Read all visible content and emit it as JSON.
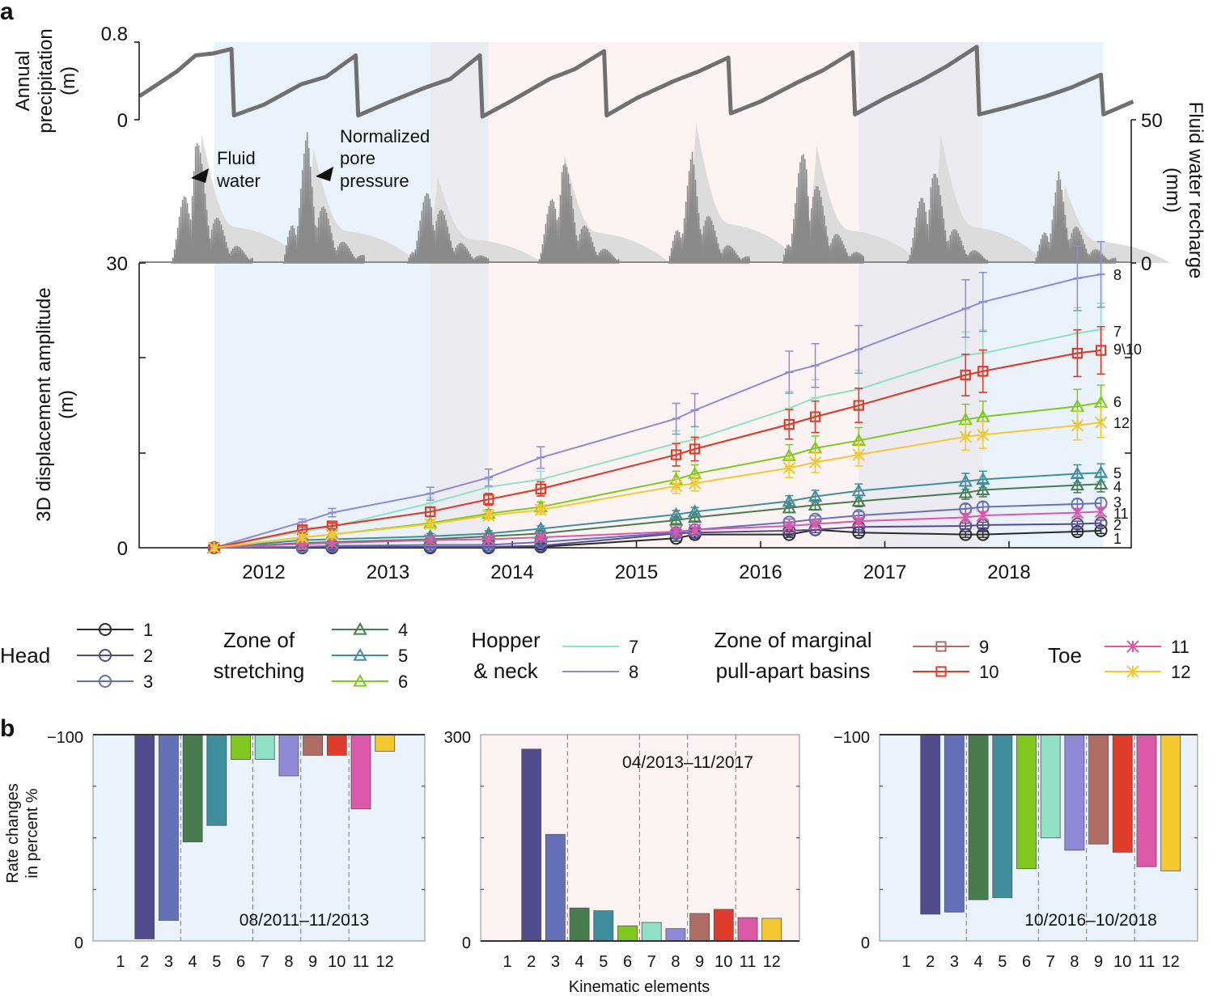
{
  "panel_labels": {
    "a": "a",
    "b": "b"
  },
  "colors": {
    "1": "#2a2a2a",
    "2": "#524c8c",
    "3": "#6470b8",
    "4": "#477c4f",
    "5": "#3f8e9e",
    "6": "#80c820",
    "7": "#8fe0c4",
    "8": "#8f8ad6",
    "9": "#b06d66",
    "10": "#e03c2c",
    "11": "#dc58a8",
    "12": "#f5c832",
    "shade_blue": "#eaf3fb",
    "shade_purple": "#ecebf1",
    "shade_pink": "#fdf3f3",
    "precip": "#707070",
    "recharge": "#8a8a8a",
    "pore": "#dcdcdc"
  },
  "chart_data": [
    {
      "type": "line",
      "name_panel": "a-top",
      "ylabel": [
        "Annual",
        "precipitation",
        "(m)"
      ],
      "ylim": [
        0,
        0.8
      ],
      "yticks": [
        "0",
        "0.8"
      ],
      "y2label": [
        "Fluid water recharge",
        "(mm)"
      ],
      "y2lim": [
        0,
        50
      ],
      "y2ticks": [
        "0",
        "50"
      ],
      "annotations": [
        {
          "text": [
            "Fluid",
            "water"
          ]
        },
        {
          "text": [
            "Normalized",
            "pore",
            "pressure"
          ]
        }
      ],
      "precipitation": [
        [
          2011.0,
          0.22
        ],
        [
          2011.3,
          0.45
        ],
        [
          2011.45,
          0.6
        ],
        [
          2011.6,
          0.62
        ],
        [
          2011.74,
          0.66
        ],
        [
          2011.76,
          0.04
        ],
        [
          2012.0,
          0.14
        ],
        [
          2012.3,
          0.33
        ],
        [
          2012.5,
          0.4
        ],
        [
          2012.74,
          0.6
        ],
        [
          2012.76,
          0.04
        ],
        [
          2013.0,
          0.16
        ],
        [
          2013.3,
          0.3
        ],
        [
          2013.5,
          0.38
        ],
        [
          2013.74,
          0.6
        ],
        [
          2013.76,
          0.03
        ],
        [
          2014.0,
          0.18
        ],
        [
          2014.3,
          0.38
        ],
        [
          2014.5,
          0.47
        ],
        [
          2014.74,
          0.64
        ],
        [
          2014.76,
          0.04
        ],
        [
          2015.0,
          0.2
        ],
        [
          2015.3,
          0.36
        ],
        [
          2015.5,
          0.45
        ],
        [
          2015.74,
          0.58
        ],
        [
          2015.76,
          0.06
        ],
        [
          2016.0,
          0.17
        ],
        [
          2016.3,
          0.35
        ],
        [
          2016.5,
          0.46
        ],
        [
          2016.74,
          0.63
        ],
        [
          2016.76,
          0.05
        ],
        [
          2017.0,
          0.2
        ],
        [
          2017.3,
          0.37
        ],
        [
          2017.5,
          0.5
        ],
        [
          2017.74,
          0.68
        ],
        [
          2017.76,
          0.05
        ],
        [
          2018.0,
          0.12
        ],
        [
          2018.3,
          0.22
        ],
        [
          2018.5,
          0.3
        ],
        [
          2018.74,
          0.42
        ],
        [
          2018.76,
          0.05
        ],
        [
          2019.0,
          0.17
        ]
      ],
      "recharge_peaks": [
        [
          2011.45,
          49
        ],
        [
          2012.35,
          46
        ],
        [
          2013.35,
          32
        ],
        [
          2014.4,
          43
        ],
        [
          2015.45,
          39
        ],
        [
          2016.37,
          48
        ],
        [
          2017.37,
          41
        ],
        [
          2018.4,
          32
        ]
      ],
      "pore_pressure_peaks": [
        [
          2011.5,
          45
        ],
        [
          2012.4,
          40
        ],
        [
          2013.4,
          30
        ],
        [
          2014.42,
          38
        ],
        [
          2015.48,
          49
        ],
        [
          2016.45,
          41
        ],
        [
          2017.45,
          45
        ],
        [
          2018.45,
          27
        ]
      ]
    },
    {
      "type": "line",
      "name_panel": "a-main",
      "ylabel": [
        "3D displacement amplitude",
        "(m)"
      ],
      "ylim": [
        0,
        30
      ],
      "yticks": [
        "0",
        "30"
      ],
      "xticks": [
        "2012",
        "2013",
        "2014",
        "2015",
        "2016",
        "2017",
        "2018"
      ],
      "x": [
        2011.6,
        2012.31,
        2012.55,
        2013.34,
        2013.81,
        2014.23,
        2015.32,
        2015.47,
        2016.23,
        2016.44,
        2016.79,
        2017.65,
        2017.79,
        2018.55,
        2018.74
      ],
      "series": [
        {
          "id": "1",
          "end_label": "1",
          "marker": "circle",
          "values": [
            0,
            0,
            0,
            0,
            0,
            0.1,
            1.0,
            1.4,
            1.4,
            1.9,
            1.6,
            1.4,
            1.4,
            1.7,
            1.8
          ]
        },
        {
          "id": "2",
          "end_label": "2",
          "marker": "circle",
          "values": [
            0,
            0.1,
            0.1,
            0.1,
            0.1,
            0.2,
            1.5,
            1.6,
            1.8,
            1.9,
            2.2,
            2.3,
            2.4,
            2.5,
            2.6
          ]
        },
        {
          "id": "3",
          "end_label": "3",
          "marker": "circle",
          "values": [
            0,
            0.1,
            0.2,
            0.3,
            0.3,
            0.6,
            1.6,
            1.9,
            2.7,
            3.0,
            3.4,
            4.1,
            4.3,
            4.6,
            4.7
          ]
        },
        {
          "id": "4",
          "end_label": "4",
          "marker": "triangle",
          "values": [
            0,
            0.5,
            0.6,
            0.9,
            1.2,
            1.5,
            2.9,
            3.2,
            4.2,
            4.5,
            4.9,
            5.8,
            6.1,
            6.6,
            6.7
          ]
        },
        {
          "id": "5",
          "end_label": "5",
          "marker": "triangle",
          "values": [
            0,
            0.8,
            0.9,
            1.2,
            1.5,
            2.0,
            3.5,
            3.8,
            4.9,
            5.4,
            6.0,
            7.0,
            7.2,
            7.8,
            7.9
          ]
        },
        {
          "id": "6",
          "end_label": "6",
          "marker": "triangle",
          "values": [
            0,
            1.1,
            1.4,
            2.6,
            3.6,
            4.3,
            7.2,
            7.8,
            9.7,
            10.5,
            11.3,
            13.5,
            13.8,
            14.9,
            15.3
          ]
        },
        {
          "id": "7",
          "end_label": "7",
          "marker": "bar",
          "values": [
            0,
            1.7,
            2.2,
            4.7,
            6.4,
            7.2,
            11.0,
            11.4,
            14.7,
            15.8,
            16.7,
            20.3,
            20.5,
            22.6,
            23.0
          ]
        },
        {
          "id": "8",
          "end_label": "8",
          "marker": "bar",
          "values": [
            0,
            2.7,
            3.7,
            5.7,
            7.4,
            9.5,
            13.6,
            14.5,
            18.5,
            19.2,
            20.9,
            25.2,
            25.9,
            28.4,
            28.8
          ]
        },
        {
          "id": "9",
          "end_label": "",
          "marker": "square",
          "values": [
            0,
            1.9,
            2.3,
            3.8,
            5.1,
            6.2,
            9.8,
            10.4,
            13.0,
            13.8,
            15.0,
            18.2,
            18.6,
            20.5,
            20.8
          ]
        },
        {
          "id": "10",
          "end_label": "9\\10",
          "marker": "square",
          "values": [
            0,
            1.9,
            2.3,
            3.8,
            5.1,
            6.2,
            9.8,
            10.4,
            13.0,
            13.8,
            15.0,
            18.2,
            18.6,
            20.5,
            20.8
          ]
        },
        {
          "id": "11",
          "end_label": "11",
          "marker": "star",
          "values": [
            0,
            0.4,
            0.5,
            0.8,
            0.9,
            1.1,
            1.7,
            1.9,
            2.3,
            2.5,
            2.8,
            3.2,
            3.4,
            3.7,
            3.8
          ]
        },
        {
          "id": "12",
          "end_label": "12",
          "marker": "star",
          "values": [
            0,
            1.1,
            1.4,
            2.5,
            3.4,
            4.0,
            6.5,
            6.8,
            8.4,
            9.0,
            9.8,
            11.7,
            11.9,
            12.9,
            13.2
          ]
        }
      ],
      "error_bars": true,
      "shading": [
        {
          "from": 2011.6,
          "to": 2013.34,
          "color": "shade_blue"
        },
        {
          "from": 2013.34,
          "to": 2013.81,
          "color": "shade_purple"
        },
        {
          "from": 2013.81,
          "to": 2016.79,
          "color": "shade_pink"
        },
        {
          "from": 2016.79,
          "to": 2017.79,
          "color": "shade_purple"
        },
        {
          "from": 2017.79,
          "to": 2018.76,
          "color": "shade_blue"
        }
      ]
    },
    {
      "type": "bar",
      "name_panel": "b-1",
      "title": "08/2011–11/2013",
      "ylabel": [
        "Rate changes",
        "in percent %"
      ],
      "ylim": [
        -100,
        0
      ],
      "yticks": [
        "0",
        "−100"
      ],
      "categories": [
        "1",
        "2",
        "3",
        "4",
        "5",
        "6",
        "7",
        "8",
        "9",
        "10",
        "11",
        "12"
      ],
      "values": [
        0,
        -99,
        -90,
        -52,
        -44,
        -12,
        -12,
        -20,
        -10,
        -10,
        -36,
        -8
      ],
      "background": "shade_blue"
    },
    {
      "type": "bar",
      "name_panel": "b-2",
      "title": "04/2013–11/2017",
      "xlabel": "Kinematic elements",
      "ylim": [
        0,
        300
      ],
      "yticks": [
        "0",
        "300"
      ],
      "categories": [
        "1",
        "2",
        "3",
        "4",
        "5",
        "6",
        "7",
        "8",
        "9",
        "10",
        "11",
        "12"
      ],
      "values": [
        0,
        279,
        155,
        48,
        44,
        22,
        27,
        18,
        40,
        46,
        34,
        33
      ],
      "background": "shade_pink"
    },
    {
      "type": "bar",
      "name_panel": "b-3",
      "title": "10/2016–10/2018",
      "ylim": [
        -100,
        0
      ],
      "yticks": [
        "0",
        "−100"
      ],
      "categories": [
        "1",
        "2",
        "3",
        "4",
        "5",
        "6",
        "7",
        "8",
        "9",
        "10",
        "11",
        "12"
      ],
      "values": [
        0,
        -87,
        -86,
        -80,
        -79,
        -65,
        -50,
        -56,
        -53,
        -57,
        -64,
        -66
      ],
      "background": "shade_blue"
    }
  ],
  "legend": {
    "groups": [
      {
        "label": [
          "Head"
        ],
        "items": [
          "1",
          "2",
          "3"
        ]
      },
      {
        "label": [
          "Zone of",
          "stretching"
        ],
        "items": [
          "4",
          "5",
          "6"
        ]
      },
      {
        "label": [
          "Hopper",
          "& neck"
        ],
        "items": [
          "7",
          "8"
        ]
      },
      {
        "label": [
          "Zone of marginal",
          "pull-apart basins"
        ],
        "items": [
          "9",
          "10"
        ]
      },
      {
        "label": [
          "Toe"
        ],
        "items": [
          "11",
          "12"
        ]
      }
    ]
  }
}
